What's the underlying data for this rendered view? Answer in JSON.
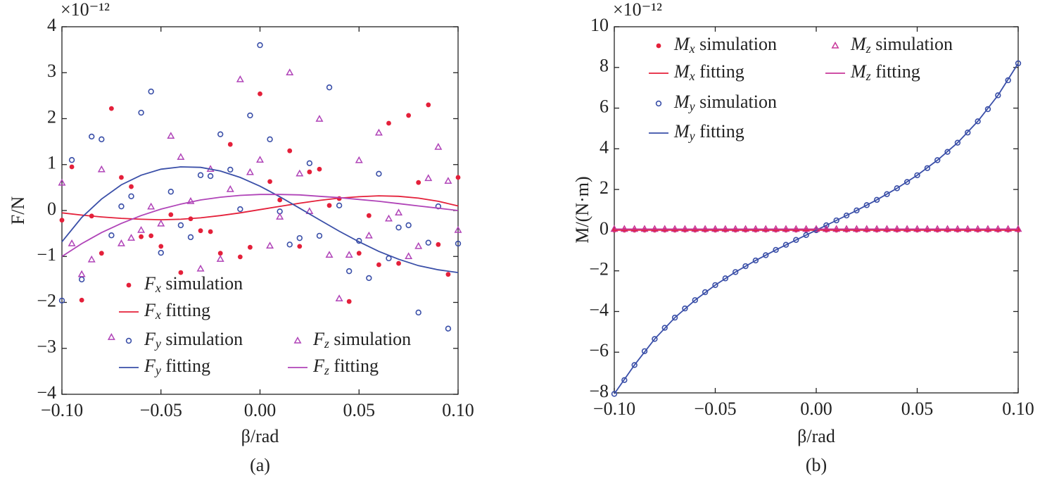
{
  "chart_data": [
    {
      "type": "scatter-line",
      "caption": "(a)",
      "xlabel": "β/rad",
      "ylabel": "F/N",
      "multiplier": "×10⁻¹²",
      "xlim": [
        -0.1,
        0.1
      ],
      "ylim": [
        -4,
        4
      ],
      "xticks": [
        {
          "value": -0.1,
          "label": "−0.10"
        },
        {
          "value": -0.05,
          "label": "−0.05"
        },
        {
          "value": 0,
          "label": "0.00"
        },
        {
          "value": 0.05,
          "label": "0.05"
        },
        {
          "value": 0.1,
          "label": "0.10"
        }
      ],
      "yticks": [
        {
          "value": -4,
          "label": "−4"
        },
        {
          "value": -3,
          "label": "−3"
        },
        {
          "value": -2,
          "label": "−2"
        },
        {
          "value": -1,
          "label": "−1"
        },
        0,
        1,
        2,
        3,
        4
      ],
      "series": [
        {
          "name": "Fx simulation",
          "color": "#e4203a",
          "marker": "dot",
          "x": [
            -0.1,
            -0.095,
            -0.09,
            -0.085,
            -0.08,
            -0.075,
            -0.07,
            -0.065,
            -0.06,
            -0.055,
            -0.05,
            -0.045,
            -0.04,
            -0.035,
            -0.03,
            -0.025,
            -0.02,
            -0.015,
            -0.01,
            -0.005,
            0,
            0.005,
            0.01,
            0.015,
            0.02,
            0.025,
            0.03,
            0.035,
            0.04,
            0.045,
            0.05,
            0.055,
            0.06,
            0.065,
            0.07,
            0.075,
            0.08,
            0.085,
            0.09,
            0.095,
            0.1
          ],
          "values": [
            -0.21,
            0.95,
            -1.95,
            -0.12,
            -0.93,
            2.22,
            0.72,
            0.52,
            -0.57,
            -0.55,
            -0.78,
            -0.09,
            -1.35,
            -0.18,
            -0.44,
            -0.46,
            -0.93,
            1.44,
            -1.01,
            -0.8,
            2.54,
            0.63,
            0.23,
            1.3,
            -0.78,
            0.84,
            0.9,
            0.11,
            0.26,
            -1.98,
            -0.93,
            -0.11,
            -1.18,
            1.9,
            -1.15,
            2.07,
            0.61,
            2.3,
            -0.74,
            -1.39,
            0.72
          ]
        },
        {
          "name": "Fx fitting",
          "color": "#e4203a",
          "marker": "line",
          "x": [
            -0.1,
            -0.09,
            -0.08,
            -0.07,
            -0.06,
            -0.05,
            -0.04,
            -0.03,
            -0.02,
            -0.01,
            0,
            0.01,
            0.02,
            0.03,
            0.04,
            0.05,
            0.06,
            0.07,
            0.08,
            0.09,
            0.1
          ],
          "values": [
            -0.05,
            -0.1,
            -0.14,
            -0.17,
            -0.19,
            -0.2,
            -0.19,
            -0.16,
            -0.11,
            -0.05,
            0.02,
            0.09,
            0.16,
            0.22,
            0.27,
            0.3,
            0.32,
            0.31,
            0.27,
            0.2,
            0.1
          ]
        },
        {
          "name": "Fy simulation",
          "color": "#3a4fa8",
          "marker": "circle",
          "x": [
            -0.1,
            -0.095,
            -0.09,
            -0.085,
            -0.08,
            -0.075,
            -0.07,
            -0.065,
            -0.06,
            -0.055,
            -0.05,
            -0.045,
            -0.04,
            -0.035,
            -0.03,
            -0.025,
            -0.02,
            -0.015,
            -0.01,
            -0.005,
            0,
            0.005,
            0.01,
            0.015,
            0.02,
            0.025,
            0.03,
            0.035,
            0.04,
            0.045,
            0.05,
            0.055,
            0.06,
            0.065,
            0.07,
            0.075,
            0.08,
            0.085,
            0.09,
            0.095,
            0.1
          ],
          "values": [
            -1.96,
            1.1,
            -1.5,
            1.61,
            1.55,
            -0.54,
            0.09,
            0.31,
            2.13,
            2.59,
            -0.92,
            0.41,
            -0.32,
            -0.58,
            0.77,
            0.75,
            1.66,
            0.89,
            0.03,
            2.07,
            3.6,
            1.55,
            -0.02,
            -0.74,
            -0.6,
            1.03,
            -0.55,
            2.68,
            0.11,
            -1.32,
            -0.66,
            -1.47,
            0.8,
            -1.04,
            -0.37,
            -0.32,
            -2.22,
            -0.7,
            0.09,
            -2.57,
            -0.72
          ]
        },
        {
          "name": "Fy fitting",
          "color": "#3a4fa8",
          "marker": "line",
          "x": [
            -0.1,
            -0.09,
            -0.08,
            -0.07,
            -0.06,
            -0.05,
            -0.04,
            -0.03,
            -0.02,
            -0.01,
            0,
            0.01,
            0.02,
            0.03,
            0.04,
            0.05,
            0.06,
            0.07,
            0.08,
            0.09,
            0.1
          ],
          "values": [
            -0.68,
            -0.15,
            0.25,
            0.56,
            0.77,
            0.9,
            0.95,
            0.94,
            0.86,
            0.72,
            0.53,
            0.3,
            0.05,
            -0.2,
            -0.45,
            -0.68,
            -0.89,
            -1.06,
            -1.2,
            -1.29,
            -1.35
          ]
        },
        {
          "name": "Fz simulation",
          "color": "#b044b8",
          "marker": "triangle",
          "x": [
            -0.1,
            -0.095,
            -0.09,
            -0.085,
            -0.08,
            -0.075,
            -0.07,
            -0.065,
            -0.06,
            -0.055,
            -0.05,
            -0.045,
            -0.04,
            -0.035,
            -0.03,
            -0.025,
            -0.02,
            -0.015,
            -0.01,
            -0.005,
            0,
            0.005,
            0.01,
            0.015,
            0.02,
            0.025,
            0.03,
            0.035,
            0.04,
            0.045,
            0.05,
            0.055,
            0.06,
            0.065,
            0.07,
            0.075,
            0.08,
            0.085,
            0.09,
            0.095,
            0.1
          ],
          "values": [
            0.6,
            -0.72,
            -1.39,
            -1.07,
            0.89,
            -2.76,
            -0.72,
            -0.6,
            -0.43,
            0.08,
            -0.29,
            1.62,
            1.16,
            0.2,
            -1.27,
            0.9,
            -1.06,
            0.46,
            2.85,
            0.83,
            1.1,
            -0.77,
            -0.14,
            3.0,
            0.8,
            -0.02,
            1.99,
            -0.97,
            -1.92,
            -0.97,
            1.09,
            -0.55,
            1.69,
            -0.18,
            -0.05,
            -1.0,
            -0.78,
            0.7,
            1.38,
            0.64,
            -0.43
          ]
        },
        {
          "name": "Fz fitting",
          "color": "#b044b8",
          "marker": "line",
          "x": [
            -0.1,
            -0.09,
            -0.08,
            -0.07,
            -0.06,
            -0.05,
            -0.04,
            -0.03,
            -0.02,
            -0.01,
            0,
            0.01,
            0.02,
            0.03,
            0.04,
            0.05,
            0.06,
            0.07,
            0.08,
            0.09,
            0.1
          ],
          "values": [
            -1.0,
            -0.72,
            -0.48,
            -0.28,
            -0.11,
            0.03,
            0.14,
            0.23,
            0.29,
            0.33,
            0.35,
            0.35,
            0.34,
            0.31,
            0.28,
            0.24,
            0.2,
            0.15,
            0.1,
            0.05,
            0.0
          ]
        }
      ]
    },
    {
      "type": "scatter-line",
      "caption": "(b)",
      "xlabel": "β/rad",
      "ylabel": "M/(N·m)",
      "multiplier": "×10⁻¹²",
      "xlim": [
        -0.1,
        0.1
      ],
      "ylim": [
        -8,
        10
      ],
      "xticks": [
        {
          "value": -0.1,
          "label": "−0.10"
        },
        {
          "value": -0.05,
          "label": "−0.05"
        },
        {
          "value": 0,
          "label": "0.00"
        },
        {
          "value": 0.05,
          "label": "0.05"
        },
        {
          "value": 0.1,
          "label": "0.10"
        }
      ],
      "yticks": [
        {
          "value": -8,
          "label": "−8"
        },
        {
          "value": -6,
          "label": "−6"
        },
        {
          "value": -4,
          "label": "−4"
        },
        {
          "value": -2,
          "label": "−2"
        },
        0,
        2,
        4,
        6,
        8,
        10
      ],
      "series": [
        {
          "name": "Mx simulation",
          "color": "#e4203a",
          "marker": "dot",
          "x": [
            -0.1,
            -0.095,
            -0.09,
            -0.085,
            -0.08,
            -0.075,
            -0.07,
            -0.065,
            -0.06,
            -0.055,
            -0.05,
            -0.045,
            -0.04,
            -0.035,
            -0.03,
            -0.025,
            -0.02,
            -0.015,
            -0.01,
            -0.005,
            0,
            0.005,
            0.01,
            0.015,
            0.02,
            0.025,
            0.03,
            0.035,
            0.04,
            0.045,
            0.05,
            0.055,
            0.06,
            0.065,
            0.07,
            0.075,
            0.08,
            0.085,
            0.09,
            0.095,
            0.1
          ],
          "values": [
            0,
            0,
            0,
            0,
            0,
            0,
            0,
            0,
            0,
            0,
            0,
            0,
            0,
            0,
            0,
            0,
            0,
            0,
            0,
            0,
            0,
            0,
            0,
            0,
            0,
            0,
            0,
            0,
            0,
            0,
            0,
            0,
            0,
            0,
            0,
            0,
            0,
            0,
            0,
            0,
            0
          ]
        },
        {
          "name": "Mx fitting",
          "color": "#e4203a",
          "marker": "line",
          "x": [
            -0.1,
            0.1
          ],
          "values": [
            0,
            0
          ]
        },
        {
          "name": "My simulation",
          "color": "#3a4fa8",
          "marker": "circle",
          "x": [
            -0.1,
            -0.095,
            -0.09,
            -0.085,
            -0.08,
            -0.075,
            -0.07,
            -0.065,
            -0.06,
            -0.055,
            -0.05,
            -0.045,
            -0.04,
            -0.035,
            -0.03,
            -0.025,
            -0.02,
            -0.015,
            -0.01,
            -0.005,
            0,
            0.005,
            0.01,
            0.015,
            0.02,
            0.025,
            0.03,
            0.035,
            0.04,
            0.045,
            0.05,
            0.055,
            0.06,
            0.065,
            0.07,
            0.075,
            0.08,
            0.085,
            0.09,
            0.095,
            0.1
          ],
          "values": [
            -8.05,
            -7.37,
            -6.63,
            -5.95,
            -5.35,
            -4.8,
            -4.3,
            -3.85,
            -3.44,
            -3.05,
            -2.7,
            -2.37,
            -2.06,
            -1.77,
            -1.49,
            -1.23,
            -0.97,
            -0.72,
            -0.48,
            -0.24,
            0,
            0.24,
            0.48,
            0.72,
            0.97,
            1.23,
            1.49,
            1.77,
            2.06,
            2.37,
            2.7,
            3.05,
            3.44,
            3.85,
            4.3,
            4.8,
            5.35,
            5.95,
            6.63,
            7.37,
            8.2
          ]
        },
        {
          "name": "My fitting",
          "color": "#3a4fa8",
          "marker": "line",
          "x": [
            -0.1,
            -0.09,
            -0.08,
            -0.07,
            -0.06,
            -0.05,
            -0.04,
            -0.03,
            -0.02,
            -0.01,
            0,
            0.01,
            0.02,
            0.03,
            0.04,
            0.05,
            0.06,
            0.07,
            0.08,
            0.09,
            0.1
          ],
          "values": [
            -8.05,
            -6.63,
            -5.35,
            -4.3,
            -3.44,
            -2.7,
            -2.06,
            -1.49,
            -0.97,
            -0.48,
            0,
            0.48,
            0.97,
            1.49,
            2.06,
            2.7,
            3.44,
            4.3,
            5.35,
            6.63,
            8.2
          ]
        },
        {
          "name": "Mz simulation",
          "color": "#c8379a",
          "marker": "triangle",
          "x": [
            -0.1,
            -0.095,
            -0.09,
            -0.085,
            -0.08,
            -0.075,
            -0.07,
            -0.065,
            -0.06,
            -0.055,
            -0.05,
            -0.045,
            -0.04,
            -0.035,
            -0.03,
            -0.025,
            -0.02,
            -0.015,
            -0.01,
            -0.005,
            0,
            0.005,
            0.01,
            0.015,
            0.02,
            0.025,
            0.03,
            0.035,
            0.04,
            0.045,
            0.05,
            0.055,
            0.06,
            0.065,
            0.07,
            0.075,
            0.08,
            0.085,
            0.09,
            0.095,
            0.1
          ],
          "values": [
            0.05,
            0.05,
            0.05,
            0.05,
            0.05,
            0.05,
            0.05,
            0.05,
            0.05,
            0.05,
            0.05,
            0.05,
            0.05,
            0.05,
            0.05,
            0.05,
            0.05,
            0.05,
            0.05,
            0.05,
            0.05,
            0.05,
            0.05,
            0.05,
            0.05,
            0.05,
            0.05,
            0.05,
            0.05,
            0.05,
            0.05,
            0.05,
            0.05,
            0.05,
            0.05,
            0.05,
            0.05,
            0.05,
            0.05,
            0.05,
            0.05
          ]
        },
        {
          "name": "Mz fitting",
          "color": "#c8379a",
          "marker": "line",
          "x": [
            -0.1,
            0.1
          ],
          "values": [
            0.05,
            0.05
          ]
        }
      ]
    }
  ]
}
